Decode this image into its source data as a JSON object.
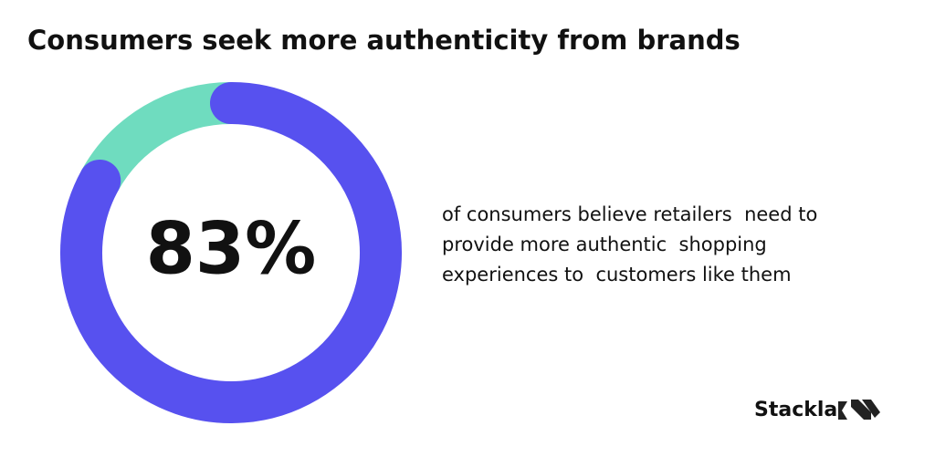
{
  "chart_data": {
    "type": "donut",
    "title": "Consumers seek more authenticity from brands",
    "values": [
      83,
      17
    ],
    "value_labels": [
      "83%",
      null
    ],
    "colors": [
      "#5751ef",
      "#6fdcbf"
    ],
    "description": [
      "of consumers believe retailers  need to",
      "provide more authentic  shopping",
      "experiences to  customers like them"
    ],
    "brand": "Stackla"
  }
}
